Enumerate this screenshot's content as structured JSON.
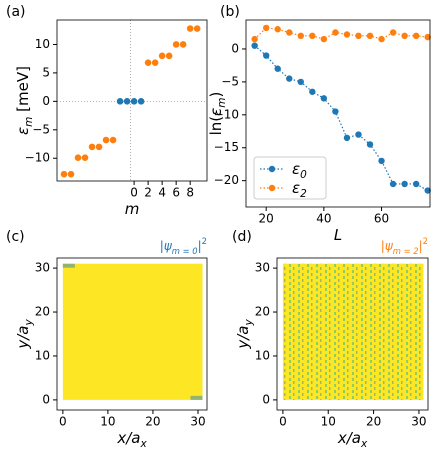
{
  "chart_data": [
    {
      "type": "scatter",
      "panel_label": "(a)",
      "xlabel": [
        {
          "text": "m",
          "pos": "italic"
        }
      ],
      "ylabel": [
        {
          "text": "ε",
          "pos": "italic"
        },
        {
          "text": "m",
          "pos": "sub"
        },
        {
          "text": " [meV]",
          "pos": "base"
        }
      ],
      "xlim": [
        -11,
        10.4
      ],
      "ylim": [
        -14,
        14.3
      ],
      "xticks": [
        0,
        2,
        4,
        6,
        8
      ],
      "yticks": [
        {
          "value": -10,
          "label": "−10"
        },
        {
          "value": -5,
          "label": "−5"
        },
        0,
        5,
        10
      ],
      "hline": 0,
      "vline": -0.5,
      "series": [
        {
          "color": "#ff7f0e",
          "x": [
            -10,
            -9,
            -8,
            -7,
            -6,
            -5,
            -4,
            -3,
            2,
            3,
            4,
            5,
            6,
            7,
            8,
            9
          ],
          "values": [
            -12.8,
            -12.8,
            -9.9,
            -9.9,
            -8.0,
            -8.0,
            -6.8,
            -6.8,
            6.8,
            6.8,
            8.0,
            8.0,
            10.0,
            10.0,
            12.8,
            12.8
          ]
        },
        {
          "color": "#1f77b4",
          "x": [
            -2,
            -1,
            0,
            1
          ],
          "values": [
            0,
            0,
            0,
            0
          ]
        }
      ]
    },
    {
      "type": "line",
      "panel_label": "(b)",
      "xlabel": [
        {
          "text": "L",
          "pos": "italic"
        }
      ],
      "ylabel": [
        {
          "text": "ln(",
          "pos": "base"
        },
        {
          "text": "ε",
          "pos": "italic"
        },
        {
          "text": "m",
          "pos": "sub"
        },
        {
          "text": ")",
          "pos": "base"
        }
      ],
      "xlim": [
        13,
        76.8
      ],
      "ylim": [
        -24,
        4.4
      ],
      "xticks": [
        20,
        40,
        60
      ],
      "yticks": [
        {
          "value": -20,
          "label": "−20"
        },
        {
          "value": -15,
          "label": "−15"
        },
        {
          "value": -10,
          "label": "−10"
        },
        {
          "value": -5,
          "label": "−5"
        },
        0
      ],
      "legend": "lower left",
      "x": [
        16,
        20,
        24,
        28,
        32,
        36,
        40,
        44,
        48,
        52,
        56,
        60,
        64,
        68,
        72,
        76
      ],
      "series": [
        {
          "name": [
            {
              "text": "ε",
              "pos": "italic"
            },
            {
              "text": "0",
              "pos": "sub"
            }
          ],
          "color": "#1f77b4",
          "values": [
            0.5,
            -1,
            -3,
            -4.5,
            -5,
            -6.5,
            -7.5,
            -9.5,
            -13.5,
            -13,
            -14.5,
            -17,
            -20.5,
            -20.5,
            -20.5,
            -21.5
          ]
        },
        {
          "name": [
            {
              "text": "ε",
              "pos": "italic"
            },
            {
              "text": "2",
              "pos": "sub"
            }
          ],
          "color": "#ff7f0e",
          "values": [
            1.5,
            3.2,
            3.0,
            2.5,
            2.0,
            2.0,
            1.5,
            2.5,
            2.2,
            2.0,
            2.0,
            1.5,
            2.5,
            2.0,
            2.0,
            1.8
          ]
        }
      ]
    },
    {
      "type": "heatmap",
      "panel_label": "(c)",
      "color": "#fde725",
      "title_color": "#1f77b4",
      "title": [
        {
          "text": "|ψ",
          "pos": "italic"
        },
        {
          "text": "m = 0",
          "pos": "sub"
        },
        {
          "text": "|",
          "pos": "base"
        },
        {
          "text": "2",
          "pos": "sup"
        }
      ],
      "xlabel": [
        {
          "text": "x/a",
          "pos": "italic"
        },
        {
          "text": "x",
          "pos": "sub"
        }
      ],
      "ylabel": [
        {
          "text": "y/a",
          "pos": "italic"
        },
        {
          "text": "y",
          "pos": "sub"
        }
      ],
      "xlim": [
        -1.3,
        32
      ],
      "ylim": [
        -2.3,
        32.3
      ],
      "extent": [
        0,
        31,
        0,
        31
      ],
      "xticks": [
        0,
        10,
        20,
        30
      ],
      "yticks": [
        0,
        10,
        20,
        30
      ]
    },
    {
      "type": "heatmap",
      "panel_label": "(d)",
      "color": "#fde725",
      "title_color": "#ff7f0e",
      "title": [
        {
          "text": "|ψ",
          "pos": "italic"
        },
        {
          "text": "m = 2",
          "pos": "sub"
        },
        {
          "text": "|",
          "pos": "base"
        },
        {
          "text": "2",
          "pos": "sup"
        }
      ],
      "xlabel": [
        {
          "text": "x/a",
          "pos": "italic"
        },
        {
          "text": "x",
          "pos": "sub"
        }
      ],
      "ylabel": [
        {
          "text": "y/a",
          "pos": "italic"
        },
        {
          "text": "y",
          "pos": "sub"
        }
      ],
      "xlim": [
        -1.3,
        32
      ],
      "ylim": [
        -2.3,
        32.3
      ],
      "extent": [
        0,
        31,
        0,
        31
      ],
      "xticks": [
        0,
        10,
        20,
        30
      ],
      "yticks": [
        0,
        10,
        20,
        30
      ]
    }
  ]
}
